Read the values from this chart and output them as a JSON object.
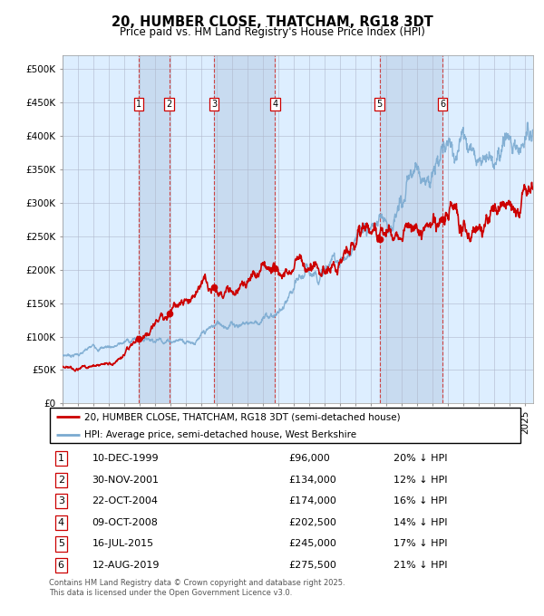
{
  "title": "20, HUMBER CLOSE, THATCHAM, RG18 3DT",
  "subtitle": "Price paid vs. HM Land Registry's House Price Index (HPI)",
  "legend_line1": "20, HUMBER CLOSE, THATCHAM, RG18 3DT (semi-detached house)",
  "legend_line2": "HPI: Average price, semi-detached house, West Berkshire",
  "footer_line1": "Contains HM Land Registry data © Crown copyright and database right 2025.",
  "footer_line2": "This data is licensed under the Open Government Licence v3.0.",
  "transactions": [
    {
      "num": 1,
      "date": "10-DEC-1999",
      "year": 1999.92,
      "price": 96000,
      "pct": "20% ↓ HPI"
    },
    {
      "num": 2,
      "date": "30-NOV-2001",
      "year": 2001.91,
      "price": 134000,
      "pct": "12% ↓ HPI"
    },
    {
      "num": 3,
      "date": "22-OCT-2004",
      "year": 2004.81,
      "price": 174000,
      "pct": "16% ↓ HPI"
    },
    {
      "num": 4,
      "date": "09-OCT-2008",
      "year": 2008.77,
      "price": 202500,
      "pct": "14% ↓ HPI"
    },
    {
      "num": 5,
      "date": "16-JUL-2015",
      "year": 2015.54,
      "price": 245000,
      "pct": "17% ↓ HPI"
    },
    {
      "num": 6,
      "date": "12-AUG-2019",
      "year": 2019.62,
      "price": 275500,
      "pct": "21% ↓ HPI"
    }
  ],
  "xmin": 1995,
  "xmax": 2025.5,
  "ymin": 0,
  "ymax": 520000,
  "yticks": [
    0,
    50000,
    100000,
    150000,
    200000,
    250000,
    300000,
    350000,
    400000,
    450000,
    500000
  ],
  "ytick_labels": [
    "£0",
    "£50K",
    "£100K",
    "£150K",
    "£200K",
    "£250K",
    "£300K",
    "£350K",
    "£400K",
    "£450K",
    "£500K"
  ],
  "red_color": "#cc0000",
  "blue_color": "#7aaad0",
  "bg_color": "#ddeeff",
  "shade_color": "#c5d8ee",
  "grid_color": "#b0b8cc",
  "vline_color": "#cc4444"
}
